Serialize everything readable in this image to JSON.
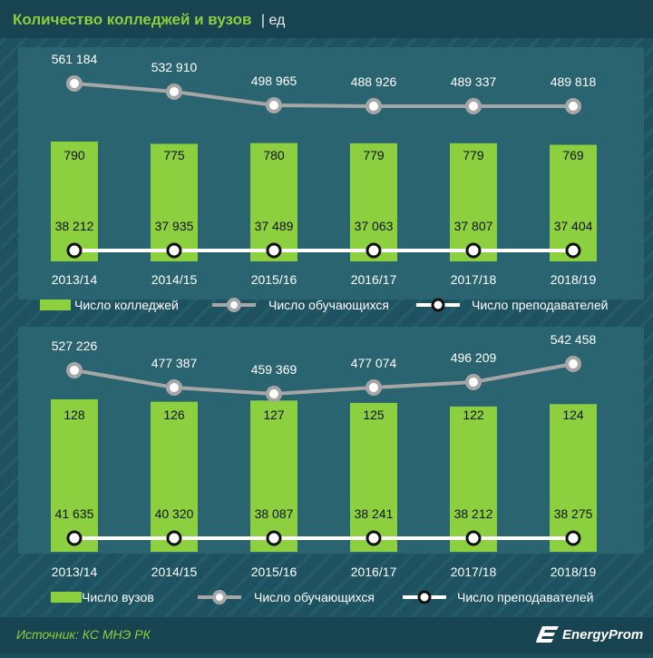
{
  "header": {
    "title": "Количество колледжей и вузов",
    "unit": "| ед"
  },
  "colors": {
    "background": "#1d4f5c",
    "panel": "#2a6470",
    "bar": "#8ccf3f",
    "line_gray": "#a6a6a6",
    "line_white": "#ffffff"
  },
  "chart_data": [
    {
      "type": "bar",
      "categories": [
        "2013/14",
        "2014/15",
        "2015/16",
        "2016/17",
        "2017/18",
        "2018/19"
      ],
      "series": [
        {
          "name": "Число колледжей",
          "type": "bar",
          "values": [
            790,
            775,
            780,
            779,
            779,
            769
          ],
          "labels": [
            "790",
            "775",
            "780",
            "779",
            "779",
            "769"
          ]
        },
        {
          "name": "Число обучающихся",
          "type": "line",
          "values": [
            561184,
            532910,
            498965,
            488926,
            489337,
            489818
          ],
          "labels": [
            "561 184",
            "532 910",
            "498 965",
            "488 926",
            "489 337",
            "489 818"
          ]
        },
        {
          "name": "Число преподавателей",
          "type": "line",
          "values": [
            38212,
            37935,
            37489,
            37063,
            37807,
            37404
          ],
          "labels": [
            "38 212",
            "37 935",
            "37 489",
            "37 063",
            "37 807",
            "37 404"
          ]
        }
      ]
    },
    {
      "type": "bar",
      "categories": [
        "2013/14",
        "2014/15",
        "2015/16",
        "2016/17",
        "2017/18",
        "2018/19"
      ],
      "series": [
        {
          "name": "Число вузов",
          "type": "bar",
          "values": [
            128,
            126,
            127,
            125,
            122,
            124
          ],
          "labels": [
            "128",
            "126",
            "127",
            "125",
            "122",
            "124"
          ]
        },
        {
          "name": "Число обучающихся",
          "type": "line",
          "values": [
            527226,
            477387,
            459369,
            477074,
            496209,
            542458
          ],
          "labels": [
            "527 226",
            "477 387",
            "459 369",
            "477 074",
            "496 209",
            "542 458"
          ]
        },
        {
          "name": "Число преподавателей",
          "type": "line",
          "values": [
            41635,
            40320,
            38087,
            38241,
            38212,
            38275
          ],
          "labels": [
            "41 635",
            "40 320",
            "38 087",
            "38 241",
            "38 212",
            "38 275"
          ]
        }
      ]
    }
  ],
  "footer": {
    "source": "Источник: КС МНЭ РК",
    "brand": "EnergyProm"
  }
}
